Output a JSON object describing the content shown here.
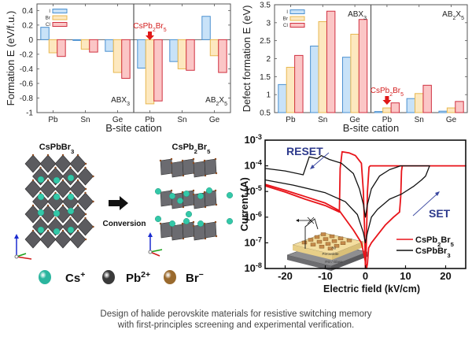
{
  "chart_data": [
    {
      "id": "formation-energy",
      "type": "bar",
      "title": "",
      "xlabel": "B-site cation",
      "ylabel": "Formation E (eV/f.u.)",
      "ylim": [
        -1,
        0.45
      ],
      "yticks": [
        "0.4",
        "0.2",
        "0",
        "-0.2",
        "-0.4",
        "-0.6",
        "-0.8",
        "-1"
      ],
      "ytick_values": [
        0.4,
        0.2,
        0,
        -0.2,
        -0.4,
        -0.6,
        -0.8,
        -1
      ],
      "groups": [
        {
          "label": "ABX₃",
          "label_main": "ABX",
          "label_sub": "3",
          "categories": [
            "Pb",
            "Sn",
            "Ge"
          ]
        },
        {
          "label": "AB₂X₅",
          "label_main": "AB",
          "label_mid_sub": "2",
          "label_mid": "X",
          "label_sub": "5",
          "categories": [
            "Pb",
            "Sn",
            "Ge"
          ]
        }
      ],
      "categories": [
        "Pb",
        "Sn",
        "Ge",
        "Pb",
        "Sn",
        "Ge"
      ],
      "series": [
        {
          "name": "I",
          "values": [
            0.17,
            -0.01,
            -0.16,
            -0.39,
            -0.3,
            0.32
          ]
        },
        {
          "name": "Br",
          "values": [
            -0.18,
            -0.13,
            -0.45,
            -0.88,
            -0.4,
            -0.22
          ]
        },
        {
          "name": "Cl",
          "values": [
            -0.23,
            -0.17,
            -0.53,
            -0.84,
            -0.42,
            -0.45
          ]
        }
      ],
      "annotation": {
        "text_main": "CsPb",
        "sub1": "2",
        "text_mid": "Br",
        "sub2": "5",
        "target_category_index": 3
      },
      "legend": "top-left",
      "grid": false
    },
    {
      "id": "defect-formation-energy",
      "type": "bar",
      "title": "",
      "xlabel": "B-site cation",
      "ylabel": "Defect formation E (eV)",
      "ylim": [
        0.5,
        3.5
      ],
      "yticks": [
        "3.5",
        "3",
        "2.5",
        "2",
        "1.5",
        "1",
        "0.5"
      ],
      "ytick_values": [
        3.5,
        3,
        2.5,
        2,
        1.5,
        1,
        0.5
      ],
      "groups": [
        {
          "label": "ABX₃",
          "label_main": "ABX",
          "label_sub": "3",
          "categories": [
            "Pb",
            "Sn",
            "Ge"
          ]
        },
        {
          "label": "AB₂X₅",
          "label_main": "AB",
          "label_mid_sub": "2",
          "label_mid": "X",
          "label_sub": "5",
          "categories": [
            "Pb",
            "Sn",
            "Ge"
          ]
        }
      ],
      "categories": [
        "Pb",
        "Sn",
        "Ge",
        "Pb",
        "Sn",
        "Ge"
      ],
      "series": [
        {
          "name": "I",
          "values": [
            1.28,
            2.35,
            2.04,
            0.53,
            0.89,
            0.54
          ]
        },
        {
          "name": "Br",
          "values": [
            1.76,
            3.03,
            2.68,
            0.63,
            1.03,
            0.63
          ]
        },
        {
          "name": "Cl",
          "values": [
            2.09,
            3.32,
            3.09,
            0.77,
            1.26,
            0.81
          ]
        }
      ],
      "annotation": {
        "text_main": "CsPb",
        "sub1": "2",
        "text_mid": "Br",
        "sub2": "5",
        "target_category_index": 3
      },
      "legend": "top-left",
      "grid": false
    },
    {
      "id": "iv-curve",
      "type": "line",
      "title": "",
      "xlabel": "Electric field (kV/cm)",
      "ylabel": "Current (A)",
      "xlim": [
        -25,
        25
      ],
      "ylim_log10": [
        -8,
        -3
      ],
      "xticks": [
        "-20",
        "-10",
        "0",
        "10",
        "20"
      ],
      "xtick_values": [
        -20,
        -10,
        0,
        10,
        20
      ],
      "yticks": [
        {
          "base": "10",
          "exp": "-3",
          "value_log10": -3
        },
        {
          "base": "10",
          "exp": "-4",
          "value_log10": -4
        },
        {
          "base": "10",
          "exp": "-5",
          "value_log10": -5
        },
        {
          "base": "10",
          "exp": "-6",
          "value_log10": -6
        },
        {
          "base": "10",
          "exp": "-7",
          "value_log10": -7
        },
        {
          "base": "10",
          "exp": "-8",
          "value_log10": -8
        }
      ],
      "yscale": "log",
      "series": [
        {
          "name": "CsPb₂Br₅",
          "name_main": "CsPb",
          "name_sub1": "2",
          "name_mid": "Br",
          "name_sub2": "5",
          "color": "#e8141a",
          "points_log10": [
            [
              -25,
              -4.78
            ],
            [
              -20,
              -5.02
            ],
            [
              -15,
              -5.3
            ],
            [
              -10,
              -5.55
            ],
            [
              -6.5,
              -5.8
            ],
            [
              -6.3,
              -4.1
            ],
            [
              -5.8,
              -3.45
            ],
            [
              -4,
              -3.5
            ],
            [
              -2.5,
              -3.6
            ],
            [
              -1,
              -3.9
            ],
            [
              -0.5,
              -5.0
            ],
            [
              -0.2,
              -6.5
            ],
            [
              0,
              -8.0
            ],
            [
              0.2,
              -7.3
            ],
            [
              0.5,
              -5.0
            ],
            [
              0.9,
              -4.05
            ],
            [
              1.2,
              -4.0
            ],
            [
              25,
              -4.0
            ],
            [
              25,
              -4.0
            ],
            [
              9.2,
              -4.0
            ],
            [
              9.0,
              -4.2
            ],
            [
              8.8,
              -5.2
            ],
            [
              8.5,
              -5.8
            ],
            [
              7,
              -6.0
            ],
            [
              5,
              -6.3
            ],
            [
              3,
              -6.7
            ],
            [
              1.5,
              -7.0
            ],
            [
              0.8,
              -7.2
            ],
            [
              0.5,
              -7.8
            ],
            [
              0.3,
              -8.0
            ],
            [
              -0.3,
              -7.5
            ],
            [
              -1,
              -7.0
            ],
            [
              -3,
              -6.5
            ],
            [
              -6.5,
              -5.75
            ],
            [
              -10,
              -5.45
            ],
            [
              -15,
              -5.2
            ],
            [
              -20,
              -4.95
            ],
            [
              -25,
              -4.72
            ]
          ]
        },
        {
          "name": "CsPbBr₃",
          "name_main": "CsPbBr",
          "name_sub1": "3",
          "color": "#111111",
          "points_log10": [
            [
              -25,
              -4.1
            ],
            [
              -20,
              -4.2
            ],
            [
              -15.5,
              -4.35
            ],
            [
              -14,
              -3.65
            ],
            [
              -12,
              -3.72
            ],
            [
              -11,
              -3.6
            ],
            [
              -9,
              -3.75
            ],
            [
              -6,
              -3.9
            ],
            [
              -3,
              -4.3
            ],
            [
              -1.5,
              -4.9
            ],
            [
              -0.5,
              -5.5
            ],
            [
              0,
              -6.0
            ],
            [
              0.5,
              -5.5
            ],
            [
              1.5,
              -4.9
            ],
            [
              3.5,
              -4.4
            ],
            [
              6,
              -4.15
            ],
            [
              8.8,
              -4.0
            ],
            [
              16,
              -4.0
            ],
            [
              15,
              -4.4
            ],
            [
              14,
              -4.55
            ],
            [
              12,
              -4.8
            ],
            [
              9,
              -5.1
            ],
            [
              6,
              -5.3
            ],
            [
              3,
              -5.7
            ],
            [
              1.5,
              -6.0
            ],
            [
              0.5,
              -6.6
            ],
            [
              0,
              -7.0
            ],
            [
              -0.5,
              -6.6
            ],
            [
              -2,
              -5.9
            ],
            [
              -5,
              -5.4
            ],
            [
              -10,
              -5.05
            ],
            [
              -18,
              -4.75
            ],
            [
              -25,
              -4.55
            ]
          ]
        }
      ],
      "annotations": [
        {
          "text": "RESET",
          "direction": "toward-negative"
        },
        {
          "text": "SET",
          "direction": "toward-positive"
        }
      ],
      "inset": {
        "labels": [
          "Ag",
          "Perovskite",
          "ITO / Glass"
        ]
      },
      "legend": "bottom-right",
      "grid": false
    }
  ],
  "structures": {
    "left_title_main": "CsPbBr",
    "left_title_sub": "3",
    "right_title_main": "CsPb",
    "right_title_sub1": "2",
    "right_title_mid": "Br",
    "right_title_sub2": "5",
    "arrow_label": "Conversion",
    "legend": [
      {
        "ion_main": "Cs",
        "ion_sup": "+",
        "color": "#2bb59e"
      },
      {
        "ion_main": "Pb",
        "ion_sup": "2+",
        "color": "#3a3a3a"
      },
      {
        "ion_main": "Br",
        "ion_sup": "−",
        "color": "#9a6a2e"
      }
    ],
    "axes_labels": [
      "c",
      "b",
      "a"
    ]
  },
  "colors": {
    "I_fill": "#c8e2f8",
    "I_edge": "#4a90d0",
    "Br_fill": "#fde8bf",
    "Br_edge": "#e8b850",
    "Cl_fill": "#fbc6c6",
    "Cl_edge": "#d03040",
    "annotation": "#d42020",
    "arrow_label": "#2d3a8c"
  },
  "caption": {
    "line1": "Design of halide perovskite materials for resistive switching memory",
    "line2": "with first-principles screening and experimental verification."
  }
}
